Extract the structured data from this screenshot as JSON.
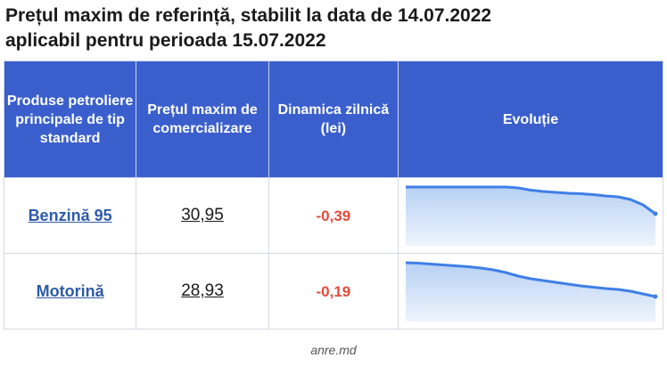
{
  "title_line1": "Prețul maxim de referință, stabilit la data de 14.07.2022",
  "title_line2": "aplicabil pentru perioada 15.07.2022",
  "table": {
    "headers": [
      "Produse petroliere principale de tip standard",
      "Prețul maxim de comercializare",
      "Dinamica zilnică (lei)",
      "Evoluție"
    ],
    "rows": [
      {
        "product": "Benzină 95",
        "price": "30,95",
        "delta": "-0,39",
        "trend": [
          1.0,
          1.0,
          1.0,
          1.0,
          1.0,
          1.0,
          1.0,
          1.0,
          1.0,
          0.98,
          0.93,
          0.9,
          0.88,
          0.86,
          0.85,
          0.83,
          0.8,
          0.78,
          0.72,
          0.6,
          0.4
        ]
      },
      {
        "product": "Motorină",
        "price": "28,93",
        "delta": "-0,19",
        "trend": [
          1.0,
          0.99,
          0.97,
          0.95,
          0.93,
          0.91,
          0.88,
          0.84,
          0.78,
          0.7,
          0.64,
          0.6,
          0.56,
          0.52,
          0.48,
          0.45,
          0.42,
          0.4,
          0.36,
          0.3,
          0.24
        ]
      }
    ]
  },
  "source": "anre.md",
  "colors": {
    "header_bg": "#3a5fcd",
    "link": "#2e5aa8",
    "delta": "#e64b3c",
    "spark_line": "#3f7fe6",
    "spark_fill_top": "#b7d1f4",
    "spark_fill_bottom": "#eef4fd"
  }
}
